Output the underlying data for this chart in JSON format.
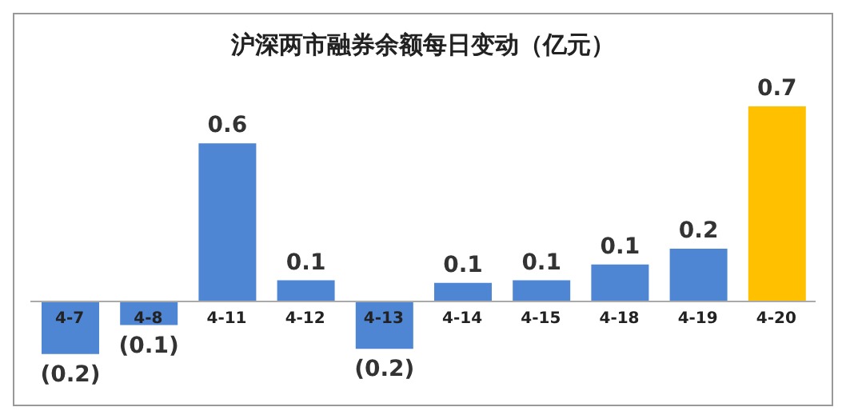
{
  "chart_data": {
    "type": "bar",
    "title": "沪深两市融券余额每日变动（亿元）",
    "categories": [
      "4-7",
      "4-8",
      "4-11",
      "4-12",
      "4-13",
      "4-14",
      "4-15",
      "4-18",
      "4-19",
      "4-20"
    ],
    "values": [
      -0.2,
      -0.09,
      0.6,
      0.08,
      -0.18,
      0.07,
      0.08,
      0.14,
      0.2,
      0.74
    ],
    "value_labels": [
      "(0.2)",
      "(0.1)",
      "0.6",
      "0.1",
      "(0.2)",
      "0.1",
      "0.1",
      "0.1",
      "0.2",
      "0.7"
    ],
    "colors": [
      "#4f86d4",
      "#4f86d4",
      "#4f86d4",
      "#4f86d4",
      "#4f86d4",
      "#4f86d4",
      "#4f86d4",
      "#4f86d4",
      "#4f86d4",
      "#ffc000"
    ],
    "grid": false,
    "legend": false
  }
}
